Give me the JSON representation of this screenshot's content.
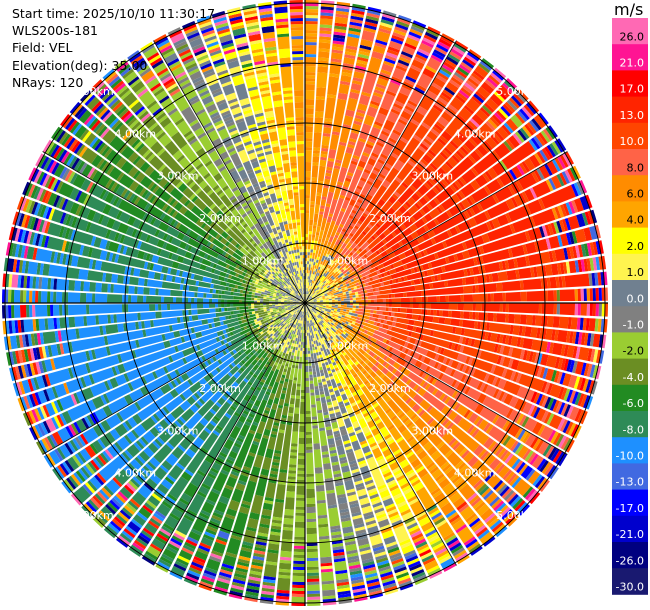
{
  "header": {
    "start_time": "Start time: 2025/10/10 11:30:17",
    "instrument": "WLS200s-181",
    "field": "Field: VEL",
    "elevation": "Elevation(deg): 35.00",
    "nrays": "NRays: 120"
  },
  "colorbar": {
    "unit": "m/s",
    "ticks": [
      "26.0",
      "21.0",
      "17.0",
      "13.0",
      "10.0",
      "8.0",
      "6.0",
      "4.0",
      "2.0",
      "1.0",
      "0.0",
      "-1.0",
      "-2.0",
      "-4.0",
      "-6.0",
      "-8.0",
      "-10.0",
      "-13.0",
      "-17.0",
      "-21.0",
      "-26.0",
      "-30.0"
    ],
    "colors": [
      "#ff69b4",
      "#ff1493",
      "#ff0000",
      "#ff2400",
      "#ff4500",
      "#ff6347",
      "#ff8c00",
      "#ffa500",
      "#ffff00",
      "#fff44f",
      "#708090",
      "#808080",
      "#9acd32",
      "#6b8e23",
      "#228b22",
      "#2e8b57",
      "#1e90ff",
      "#4169e1",
      "#0000ff",
      "#0000cd",
      "#000080",
      "#191970"
    ]
  },
  "chart_data": {
    "type": "ppi",
    "field": "VEL",
    "elevation_deg": 35.0,
    "n_rays": 120,
    "range_rings_km": [
      1,
      2,
      3,
      4,
      5
    ],
    "ring_labels": [
      "1.00km",
      "2.00km",
      "3.00km",
      "4.00km",
      "5.00km"
    ],
    "value_range": [
      -30.0,
      26.0
    ],
    "pattern": "velocity dipole: positive (yellow/orange/red, 4 to 13 m/s) toward upper-right and right, negative (green/blue, -4 to -13 m/s) toward lower-left and left, near-zero grey/yellow-green near center; noisy speckled outer ring"
  }
}
